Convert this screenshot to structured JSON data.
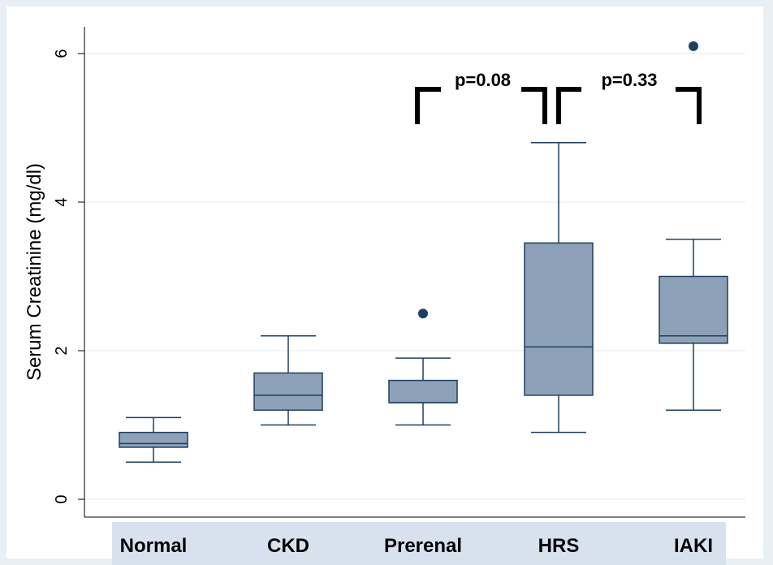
{
  "chart_data": {
    "type": "box",
    "title": "",
    "ylabel": "Serum Creatinine (mg/dl)",
    "xlabel": "",
    "ylim": [
      -0.25,
      6.35
    ],
    "yticks": [
      0,
      2,
      4,
      6
    ],
    "grid": true,
    "categories": [
      "Normal",
      "CKD",
      "Prerenal",
      "HRS",
      "IAKI"
    ],
    "boxes": [
      {
        "category": "Normal",
        "min": 0.5,
        "q1": 0.7,
        "median": 0.75,
        "q3": 0.9,
        "max": 1.1,
        "outliers": []
      },
      {
        "category": "CKD",
        "min": 1.0,
        "q1": 1.2,
        "median": 1.4,
        "q3": 1.7,
        "max": 2.2,
        "outliers": []
      },
      {
        "category": "Prerenal",
        "min": 1.0,
        "q1": 1.3,
        "median": 1.3,
        "q3": 1.6,
        "max": 1.9,
        "outliers": [
          2.5
        ]
      },
      {
        "category": "HRS",
        "min": 0.9,
        "q1": 1.4,
        "median": 2.05,
        "q3": 3.45,
        "max": 4.8,
        "outliers": []
      },
      {
        "category": "IAKI",
        "min": 1.2,
        "q1": 2.1,
        "median": 2.2,
        "q3": 3.0,
        "max": 3.5,
        "outliers": [
          6.1
        ]
      }
    ],
    "annotations": [
      {
        "text": "p=0.08",
        "from": "Prerenal",
        "to": "HRS"
      },
      {
        "text": "p=0.33",
        "from": "HRS",
        "to": "IAKI"
      }
    ],
    "colors": {
      "box_fill": "#8da2b8",
      "box_stroke": "#1f3f5f",
      "outlier": "#1f3f5f",
      "category_band": "#d8e2ee"
    }
  }
}
